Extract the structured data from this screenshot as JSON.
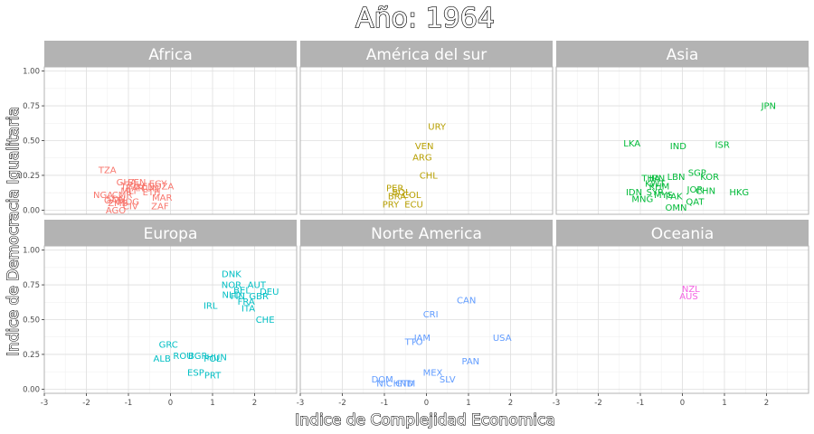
{
  "chart_data": {
    "type": "scatter",
    "title": "Año: 1964",
    "xlabel": "Indice de Complejidad Economica",
    "ylabel": "Indice de Democracia Igualitaria",
    "xlim": [
      -3,
      3
    ],
    "ylim": [
      -0.03,
      1.03
    ],
    "x_ticks": [
      -3,
      -2,
      -1,
      0,
      1,
      2
    ],
    "y_ticks": [
      0.0,
      0.25,
      0.5,
      0.75,
      1.0
    ],
    "y_tick_labels": [
      "0.00",
      "0.25",
      "0.50",
      "0.75",
      "1.00"
    ],
    "grid": true,
    "legend": "none",
    "panels": [
      {
        "name": "Africa",
        "color": "#F8766D",
        "points": [
          {
            "label": "TZA",
            "x": -1.5,
            "y": 0.29
          },
          {
            "label": "GHA",
            "x": -1.05,
            "y": 0.2
          },
          {
            "label": "SEN",
            "x": -0.8,
            "y": 0.2
          },
          {
            "label": "TGO",
            "x": -0.95,
            "y": 0.17
          },
          {
            "label": "EGY",
            "x": -0.3,
            "y": 0.19
          },
          {
            "label": "ZAR",
            "x": -0.85,
            "y": 0.16
          },
          {
            "label": "KEN",
            "x": -0.6,
            "y": 0.17
          },
          {
            "label": "TUN",
            "x": -0.5,
            "y": 0.16
          },
          {
            "label": "DZA",
            "x": -0.15,
            "y": 0.17
          },
          {
            "label": "MLI",
            "x": -1.0,
            "y": 0.14
          },
          {
            "label": "ETH",
            "x": -0.45,
            "y": 0.13
          },
          {
            "label": "NGA",
            "x": -1.6,
            "y": 0.11
          },
          {
            "label": "CMR",
            "x": -1.15,
            "y": 0.11
          },
          {
            "label": "MAR",
            "x": -0.2,
            "y": 0.09
          },
          {
            "label": "SDN",
            "x": -1.3,
            "y": 0.08
          },
          {
            "label": "GAB",
            "x": -1.35,
            "y": 0.07
          },
          {
            "label": "MDG",
            "x": -1.0,
            "y": 0.06
          },
          {
            "label": "ZMB",
            "x": -1.25,
            "y": 0.05
          },
          {
            "label": "CIV",
            "x": -0.95,
            "y": 0.03
          },
          {
            "label": "ZAF",
            "x": -0.25,
            "y": 0.03
          },
          {
            "label": "AGO",
            "x": -1.3,
            "y": 0.0
          }
        ]
      },
      {
        "name": "América del sur",
        "color": "#B79F00",
        "points": [
          {
            "label": "URY",
            "x": 0.25,
            "y": 0.6
          },
          {
            "label": "VEN",
            "x": -0.05,
            "y": 0.46
          },
          {
            "label": "ARG",
            "x": -0.1,
            "y": 0.38
          },
          {
            "label": "CHL",
            "x": 0.05,
            "y": 0.25
          },
          {
            "label": "PER",
            "x": -0.75,
            "y": 0.16
          },
          {
            "label": "BOL",
            "x": -0.6,
            "y": 0.13
          },
          {
            "label": "BRA",
            "x": -0.7,
            "y": 0.1
          },
          {
            "label": "COL",
            "x": -0.35,
            "y": 0.11
          },
          {
            "label": "PRY",
            "x": -0.85,
            "y": 0.04
          },
          {
            "label": "ECU",
            "x": -0.3,
            "y": 0.04
          }
        ]
      },
      {
        "name": "Asia",
        "color": "#00BA38",
        "points": [
          {
            "label": "JPN",
            "x": 2.05,
            "y": 0.75
          },
          {
            "label": "LKA",
            "x": -1.2,
            "y": 0.48
          },
          {
            "label": "IND",
            "x": -0.1,
            "y": 0.46
          },
          {
            "label": "ISR",
            "x": 0.95,
            "y": 0.47
          },
          {
            "label": "SGP",
            "x": 0.35,
            "y": 0.27
          },
          {
            "label": "KOR",
            "x": 0.65,
            "y": 0.24
          },
          {
            "label": "LBN",
            "x": -0.15,
            "y": 0.24
          },
          {
            "label": "THA",
            "x": -0.75,
            "y": 0.23
          },
          {
            "label": "IRN",
            "x": -0.6,
            "y": 0.23
          },
          {
            "label": "KWT",
            "x": -0.65,
            "y": 0.19
          },
          {
            "label": "KHM",
            "x": -0.55,
            "y": 0.17
          },
          {
            "label": "JOR",
            "x": 0.3,
            "y": 0.15
          },
          {
            "label": "CHN",
            "x": 0.55,
            "y": 0.14
          },
          {
            "label": "HKG",
            "x": 1.35,
            "y": 0.13
          },
          {
            "label": "IDN",
            "x": -1.15,
            "y": 0.13
          },
          {
            "label": "SYR",
            "x": -0.65,
            "y": 0.13
          },
          {
            "label": "MYS",
            "x": -0.45,
            "y": 0.11
          },
          {
            "label": "PAK",
            "x": -0.2,
            "y": 0.1
          },
          {
            "label": "MNG",
            "x": -0.95,
            "y": 0.08
          },
          {
            "label": "QAT",
            "x": 0.3,
            "y": 0.06
          },
          {
            "label": "OMN",
            "x": -0.15,
            "y": 0.02
          }
        ]
      },
      {
        "name": "Europa",
        "color": "#00BFC4",
        "points": [
          {
            "label": "DNK",
            "x": 1.45,
            "y": 0.83
          },
          {
            "label": "NOR",
            "x": 1.45,
            "y": 0.75
          },
          {
            "label": "AUT",
            "x": 2.05,
            "y": 0.75
          },
          {
            "label": "BEL",
            "x": 1.7,
            "y": 0.71
          },
          {
            "label": "DEU",
            "x": 2.35,
            "y": 0.7
          },
          {
            "label": "NLD",
            "x": 1.45,
            "y": 0.68
          },
          {
            "label": "FIN",
            "x": 1.6,
            "y": 0.67
          },
          {
            "label": "GBR",
            "x": 2.1,
            "y": 0.67
          },
          {
            "label": "FRA",
            "x": 1.8,
            "y": 0.63
          },
          {
            "label": "IRL",
            "x": 0.95,
            "y": 0.6
          },
          {
            "label": "ITA",
            "x": 1.85,
            "y": 0.58
          },
          {
            "label": "CHE",
            "x": 2.25,
            "y": 0.5
          },
          {
            "label": "GRC",
            "x": -0.05,
            "y": 0.32
          },
          {
            "label": "ROU",
            "x": 0.3,
            "y": 0.24
          },
          {
            "label": "BGR",
            "x": 0.65,
            "y": 0.24
          },
          {
            "label": "HUN",
            "x": 1.1,
            "y": 0.23
          },
          {
            "label": "ALB",
            "x": -0.2,
            "y": 0.22
          },
          {
            "label": "POL",
            "x": 1.0,
            "y": 0.22
          },
          {
            "label": "ESP",
            "x": 0.6,
            "y": 0.12
          },
          {
            "label": "PRT",
            "x": 1.0,
            "y": 0.1
          }
        ]
      },
      {
        "name": "Norte America",
        "color": "#619CFF",
        "points": [
          {
            "label": "CAN",
            "x": 0.95,
            "y": 0.64
          },
          {
            "label": "CRI",
            "x": 0.1,
            "y": 0.54
          },
          {
            "label": "JAM",
            "x": -0.1,
            "y": 0.37
          },
          {
            "label": "USA",
            "x": 1.8,
            "y": 0.37
          },
          {
            "label": "TTO",
            "x": -0.3,
            "y": 0.34
          },
          {
            "label": "PAN",
            "x": 1.05,
            "y": 0.2
          },
          {
            "label": "MEX",
            "x": 0.15,
            "y": 0.12
          },
          {
            "label": "DOM",
            "x": -1.05,
            "y": 0.07
          },
          {
            "label": "SLV",
            "x": 0.5,
            "y": 0.07
          },
          {
            "label": "NIC",
            "x": -1.0,
            "y": 0.04
          },
          {
            "label": "HND",
            "x": -0.55,
            "y": 0.04
          },
          {
            "label": "GTM",
            "x": -0.5,
            "y": 0.04
          }
        ]
      },
      {
        "name": "Oceania",
        "color": "#F564E3",
        "points": [
          {
            "label": "NZL",
            "x": 0.2,
            "y": 0.72
          },
          {
            "label": "AUS",
            "x": 0.15,
            "y": 0.67
          }
        ]
      }
    ]
  }
}
